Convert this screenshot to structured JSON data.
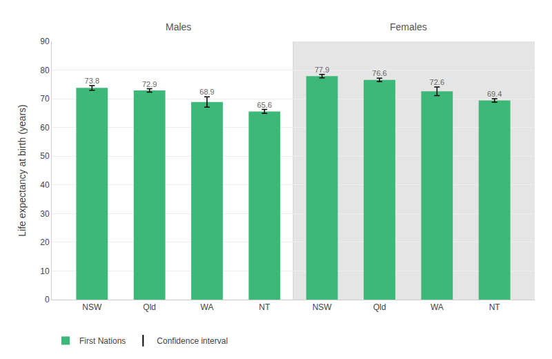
{
  "chart_data": {
    "type": "bar",
    "categories": [
      "NSW",
      "Qld",
      "WA",
      "NT",
      "NSW",
      "Qld",
      "WA",
      "NT"
    ],
    "series": [
      {
        "name": "First Nations",
        "color": "#3cb878",
        "values": [
          73.8,
          72.9,
          68.9,
          65.6,
          77.9,
          76.6,
          72.6,
          69.4
        ],
        "errors": [
          0.8,
          0.6,
          1.8,
          0.7,
          0.6,
          0.6,
          1.5,
          0.6
        ],
        "error_name": "Confidence interval"
      }
    ],
    "ylabel": "Life expectancy at birth (years)",
    "ylim": [
      0,
      90
    ],
    "yticks": [
      0,
      10,
      20,
      30,
      40,
      50,
      60,
      70,
      80,
      90
    ],
    "grid": true,
    "legend": "bottom",
    "data_labels": true,
    "annotations": [
      "Males",
      "Females"
    ]
  }
}
